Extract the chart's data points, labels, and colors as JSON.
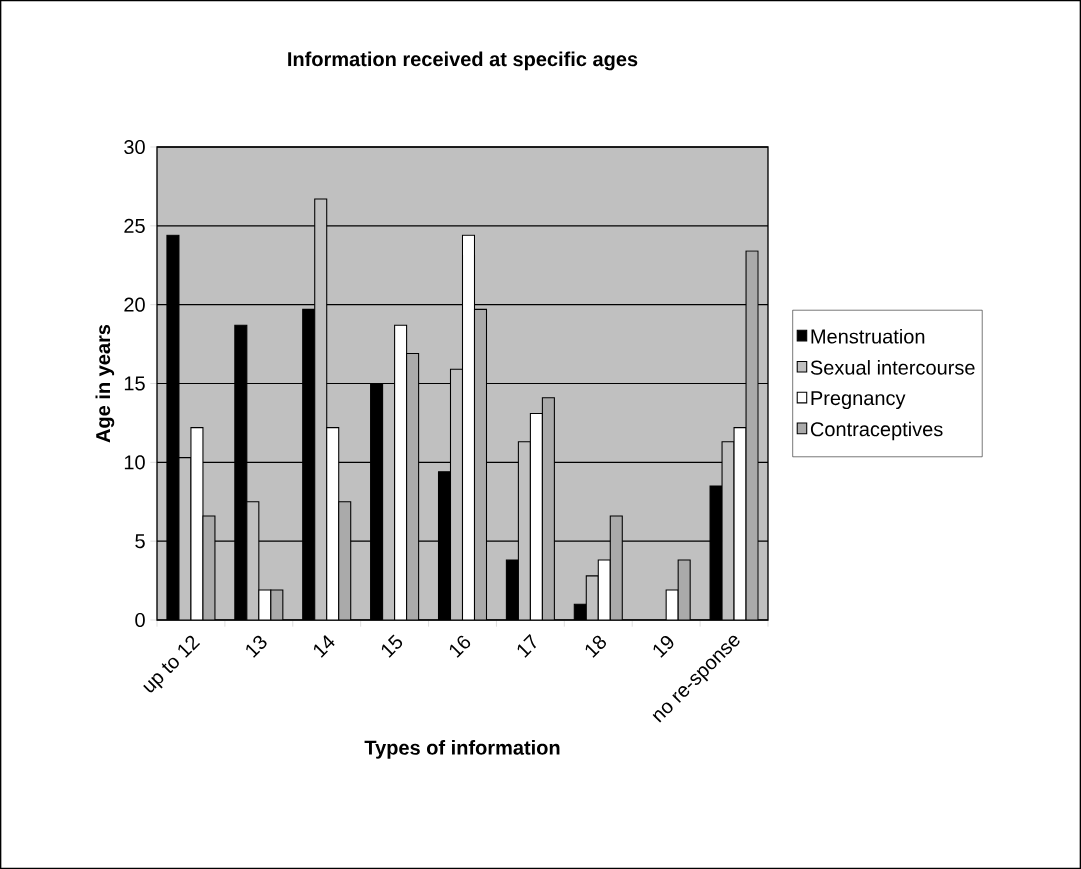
{
  "chart_data": {
    "type": "bar",
    "title": "Information received at specific ages",
    "xlabel": "Types of information",
    "ylabel": "Age in years",
    "categories": [
      "up to 12",
      "13",
      "14",
      "15",
      "16",
      "17",
      "18",
      "19",
      "no re-sponse"
    ],
    "series": [
      {
        "name": "Menstruation",
        "color": "#000000",
        "values": [
          24.4,
          18.7,
          19.7,
          15.0,
          9.4,
          3.8,
          1.0,
          0,
          8.5
        ]
      },
      {
        "name": "Sexual intercourse",
        "color": "#c0c0c0",
        "values": [
          10.3,
          7.5,
          26.7,
          15.0,
          15.9,
          11.3,
          2.8,
          0,
          11.3
        ]
      },
      {
        "name": "Pregnancy",
        "color": "#ffffff",
        "values": [
          12.2,
          1.9,
          12.2,
          18.7,
          24.4,
          13.1,
          3.8,
          1.9,
          12.2
        ]
      },
      {
        "name": "Contraceptives",
        "color": "#aaaaaa",
        "values": [
          6.6,
          1.9,
          7.5,
          16.9,
          19.7,
          14.1,
          6.6,
          3.8,
          23.4
        ]
      }
    ],
    "ylim": [
      0,
      30
    ],
    "yticks": [
      0,
      5,
      10,
      15,
      20,
      25,
      30
    ],
    "grid": "y",
    "legend": "right"
  }
}
